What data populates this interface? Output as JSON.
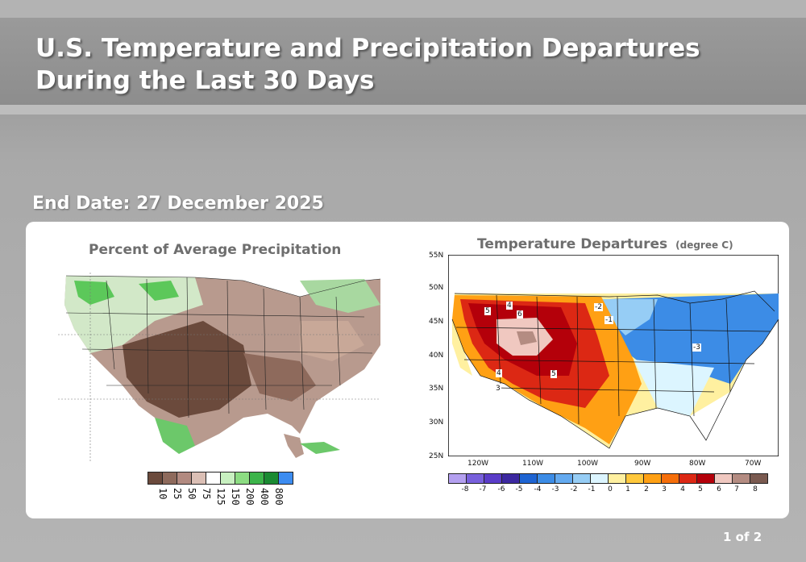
{
  "header": {
    "title": "U.S. Temperature and Precipitation Departures During the Last 30 Days"
  },
  "end_date": "End Date: 27 December 2025",
  "precip_map": {
    "title": "Percent of Average Precipitation",
    "legend": {
      "labels": [
        "10",
        "25",
        "50",
        "75",
        "125",
        "150",
        "200",
        "400",
        "800"
      ],
      "colors": [
        "#6b4a3c",
        "#8e6a5c",
        "#b28a80",
        "#dbbfb5",
        "#ffffff",
        "#c8f0c0",
        "#8cdc82",
        "#3cb44a",
        "#1a8a32",
        "#3c8cf0"
      ]
    }
  },
  "temp_map": {
    "title": "Temperature Departures",
    "unit": "(degree C)",
    "lat_labels": [
      "55N",
      "50N",
      "45N",
      "40N",
      "35N",
      "30N",
      "25N"
    ],
    "lon_labels": [
      "120W",
      "110W",
      "100W",
      "90W",
      "80W",
      "70W"
    ],
    "contour_labels": [
      "5",
      "4",
      "6",
      "5",
      "4",
      "3",
      "-2",
      "-1",
      "-3"
    ],
    "legend": {
      "labels": [
        "-8",
        "-7",
        "-6",
        "-5",
        "-4",
        "-3",
        "-2",
        "-1",
        "0",
        "1",
        "2",
        "3",
        "4",
        "5",
        "6",
        "7",
        "8"
      ],
      "colors": [
        "#b4a0f0",
        "#7860dc",
        "#5a3cc8",
        "#3c28a0",
        "#1e64d2",
        "#3c8ce6",
        "#64aaf0",
        "#96cdf5",
        "#dcf5ff",
        "#fff0a0",
        "#ffc83c",
        "#ffa014",
        "#f56e0a",
        "#dc2814",
        "#b4000a",
        "#f0c8c0",
        "#b48c82",
        "#7a5a50"
      ]
    }
  },
  "pagination": {
    "label": "1 of 2"
  }
}
